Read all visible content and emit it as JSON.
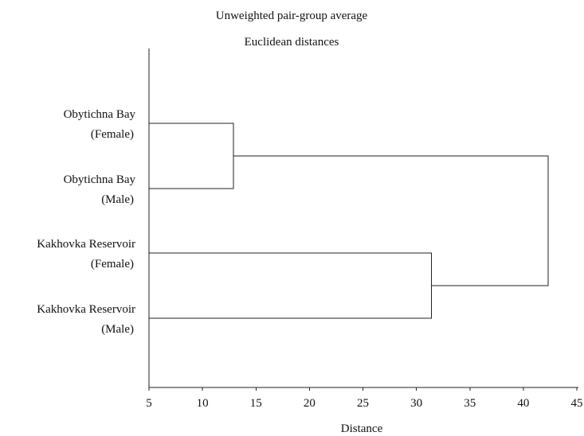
{
  "chart_data": {
    "type": "dendrogram",
    "title": "Unweighted pair-group average",
    "subtitle": "Euclidean distances",
    "xlabel": "Distance",
    "xlim": [
      5,
      45
    ],
    "x_ticks": [
      "5",
      "10",
      "15",
      "20",
      "25",
      "30",
      "35",
      "40",
      "45"
    ],
    "grid": false,
    "leaves": [
      {
        "line1": "Obytichna Bay",
        "line2": "(Female)"
      },
      {
        "line1": "Obytichna Bay",
        "line2": "(Male)"
      },
      {
        "line1": "Kakhovka Reservoir",
        "line2": "(Female)"
      },
      {
        "line1": "Kakhovka Reservoir",
        "line2": "(Male)"
      }
    ],
    "merges": [
      {
        "left": 0,
        "right": 1,
        "distance": 12.9
      },
      {
        "left": 2,
        "right": 3,
        "distance": 31.4
      },
      {
        "left": 4,
        "right": 5,
        "distance": 42.3
      }
    ]
  }
}
